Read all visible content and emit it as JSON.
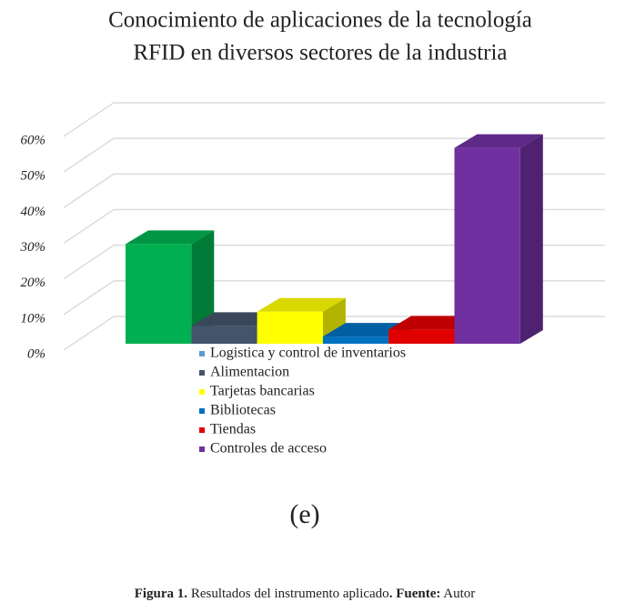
{
  "chart_data": {
    "type": "bar3d",
    "title": [
      "Conocimiento de aplicaciones de la tecnología",
      "RFID en diversos sectores de la industria"
    ],
    "series": [
      {
        "name": "Logistica y control de inventarios",
        "color": "#00b050",
        "legend_color": "#5b9bd5",
        "values": [
          28
        ]
      },
      {
        "name": "Alimentacion",
        "color": "#44546a",
        "values": [
          5
        ]
      },
      {
        "name": "Tarjetas bancarias",
        "color": "#ffff00",
        "values": [
          9
        ]
      },
      {
        "name": "Bibliotecas",
        "color": "#0070c0",
        "values": [
          2
        ]
      },
      {
        "name": "Tiendas",
        "color": "#e00000",
        "values": [
          4
        ]
      },
      {
        "name": "Controles de acceso",
        "color": "#7030a0",
        "values": [
          55
        ]
      }
    ],
    "ylim": [
      0,
      60
    ],
    "yticks": [
      {
        "value": 0,
        "label": "0%"
      },
      {
        "value": 10,
        "label": "10%"
      },
      {
        "value": 20,
        "label": "20%"
      },
      {
        "value": 30,
        "label": "30%"
      },
      {
        "value": 40,
        "label": "40%"
      },
      {
        "value": 50,
        "label": "50%"
      },
      {
        "value": 60,
        "label": "60%"
      }
    ],
    "grid": true,
    "panel_label": "(e)",
    "caption": {
      "label": "Figura 1.",
      "text": " Resultados del instrumento aplicado",
      "dot": ".",
      "source_label": " Fuente:",
      "source": " Autor"
    }
  }
}
